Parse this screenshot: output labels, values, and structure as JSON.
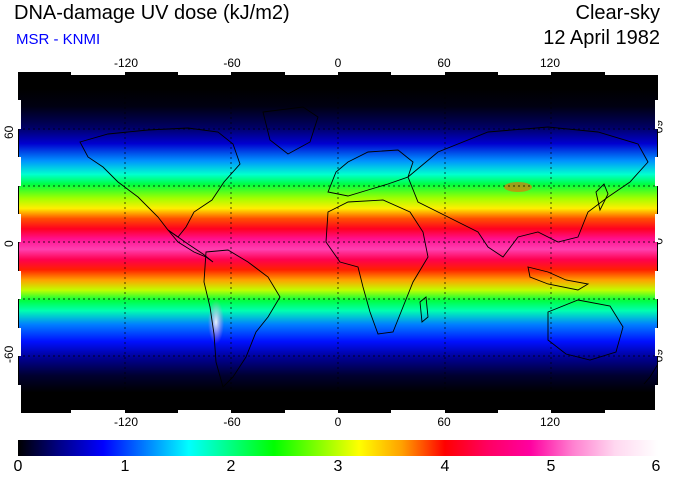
{
  "header": {
    "title": "DNA-damage UV dose (kJ/m2)",
    "subtitle": "MSR - KNMI",
    "condition": "Clear-sky",
    "date": "12 April 1982"
  },
  "map": {
    "lon_range": [
      -180,
      180
    ],
    "lat_range": [
      -90,
      90
    ],
    "lon_ticks": [
      "-120",
      "-60",
      "0",
      "60",
      "120"
    ],
    "lat_ticks": [
      "60",
      "0",
      "-60"
    ],
    "grid_dashed_lon": [
      -120,
      -60,
      0,
      60,
      120
    ],
    "grid_dashed_lat": [
      60,
      30,
      0,
      -30,
      -60
    ]
  },
  "colorbar": {
    "min": 0,
    "max": 6,
    "labels": [
      "0",
      "1",
      "2",
      "3",
      "4",
      "5",
      "6"
    ],
    "colors": [
      "#000000",
      "#00008b",
      "#0000ff",
      "#0080ff",
      "#00ffff",
      "#00ff80",
      "#00ff00",
      "#80ff00",
      "#ffff00",
      "#ffa000",
      "#ff0000",
      "#ff0060",
      "#ff00a0",
      "#ff80d0",
      "#ffd8f0",
      "#ffffff"
    ]
  }
}
